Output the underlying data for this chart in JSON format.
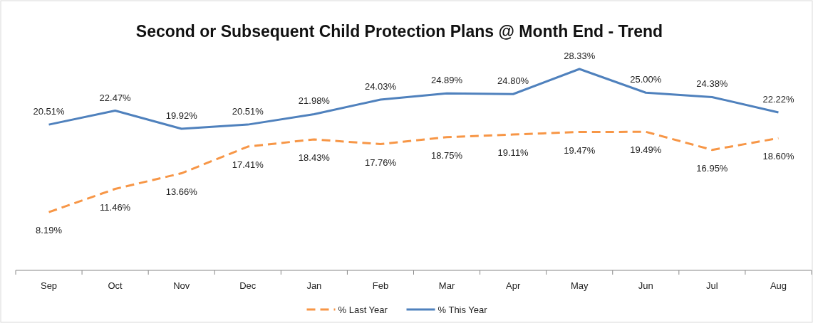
{
  "chart_data": {
    "type": "line",
    "title": "Second or Subsequent Child Protection Plans @ Month End - Trend",
    "categories": [
      "Sep",
      "Oct",
      "Nov",
      "Dec",
      "Jan",
      "Feb",
      "Mar",
      "Apr",
      "May",
      "Jun",
      "Jul",
      "Aug"
    ],
    "series": [
      {
        "name": "% Last Year",
        "color": "#f79646",
        "line_style": "dashed",
        "values": [
          8.19,
          11.46,
          13.66,
          17.41,
          18.43,
          17.76,
          18.75,
          19.11,
          19.47,
          19.49,
          16.95,
          18.6
        ],
        "value_labels": [
          "8.19%",
          "11.46%",
          "13.66%",
          "17.41%",
          "18.43%",
          "17.76%",
          "18.75%",
          "19.11%",
          "19.47%",
          "19.49%",
          "16.95%",
          "18.60%"
        ]
      },
      {
        "name": "% This Year",
        "color": "#4f81bd",
        "line_style": "solid",
        "values": [
          20.51,
          22.47,
          19.92,
          20.51,
          21.98,
          24.03,
          24.89,
          24.8,
          28.33,
          25.0,
          24.38,
          22.22
        ],
        "value_labels": [
          "20.51%",
          "22.47%",
          "19.92%",
          "20.51%",
          "21.98%",
          "24.03%",
          "24.89%",
          "24.80%",
          "28.33%",
          "25.00%",
          "24.38%",
          "22.22%"
        ]
      }
    ],
    "tick_labels": "x",
    "grid": false,
    "legend": "bottom",
    "marker": "none"
  }
}
